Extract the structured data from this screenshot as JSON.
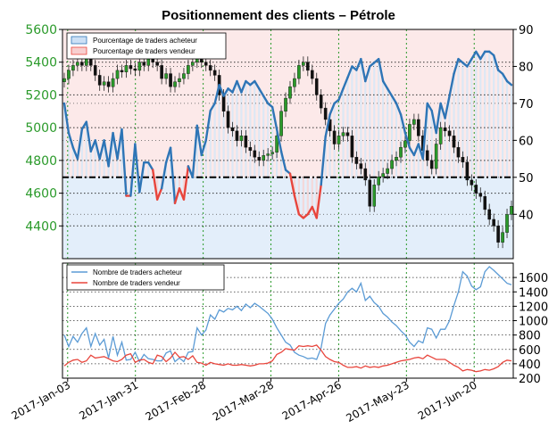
{
  "chart_data": [
    {
      "type": "line",
      "title": "Positionnement des clients – Pétrole",
      "left_axis": {
        "ylim": [
          4200,
          5600
        ],
        "ticks": [
          4400,
          4600,
          4800,
          5000,
          5200,
          5400,
          5600
        ],
        "tick_labels": [
          "4400",
          "4600",
          "4800",
          "5000",
          "5200",
          "5400",
          "5600"
        ],
        "tick_color": "#2a9a2a"
      },
      "right_axis": {
        "ylim": [
          28,
          90
        ],
        "ticks": [
          40,
          50,
          60,
          70,
          80,
          90
        ],
        "tick_labels": [
          "40",
          "50",
          "60",
          "70",
          "80",
          "90"
        ]
      },
      "x_ticks": [
        "2017-Jan-03",
        "2017-Jan-31",
        "2017-Feb-28",
        "2017-Mar-28",
        "2017-Apr-26",
        "2017-May-23",
        "2017-Jun-20"
      ],
      "threshold": 50,
      "legend": {
        "placement": "top-left",
        "entries": [
          {
            "label": "Pourcentage de traders acheteur",
            "color": "#2e75b6",
            "fill": "#cce0f5"
          },
          {
            "label": "Pourcentage de traders vendeur",
            "color": "#e8453c",
            "fill": "#f8cfcf"
          }
        ]
      },
      "series": [
        {
          "name": "Pourcentage de traders acheteur",
          "color": "#2e75b6",
          "values": [
            70,
            62,
            58,
            55,
            63,
            65,
            57,
            60,
            55,
            60,
            53,
            62,
            55,
            63,
            45,
            45,
            59,
            46,
            54,
            54,
            52,
            44,
            47,
            54,
            58,
            43,
            47,
            44,
            53,
            50,
            64,
            56,
            60,
            68,
            70,
            75,
            72,
            74,
            73,
            76,
            73,
            76,
            75,
            76,
            74,
            72,
            70,
            69,
            63,
            57,
            52,
            51,
            45,
            40,
            39,
            40,
            42,
            39,
            48,
            61,
            67,
            70,
            71,
            74,
            77,
            80,
            79,
            82,
            76,
            80,
            81,
            82,
            76,
            74,
            72,
            70,
            67,
            62,
            58,
            56,
            59,
            55,
            70,
            68,
            62,
            70,
            66,
            72,
            78,
            82,
            81,
            80,
            82,
            84,
            82,
            84,
            84,
            83,
            79,
            78,
            76,
            75
          ]
        },
        {
          "name": "Candlesticks (Pétrole)",
          "color": "#1a1a1a",
          "values": [
            5300,
            5350,
            5380,
            5400,
            5380,
            5420,
            5380,
            5320,
            5260,
            5280,
            5250,
            5300,
            5350,
            5340,
            5380,
            5360,
            5350,
            5400,
            5380,
            5420,
            5400,
            5380,
            5300,
            5330,
            5250,
            5280,
            5300,
            5330,
            5380,
            5400,
            5420,
            5400,
            5380,
            5350,
            5320,
            5200,
            5100,
            5000,
            4980,
            4920,
            4950,
            4880,
            4860,
            4820,
            4800,
            4830,
            4840,
            4850,
            4950,
            5100,
            5180,
            5250,
            5300,
            5380,
            5400,
            5350,
            5300,
            5200,
            5120,
            5050,
            4980,
            4900,
            4950,
            4970,
            4950,
            4820,
            4780,
            4750,
            4680,
            4520,
            4650,
            4700,
            4720,
            4750,
            4800,
            4820,
            4880,
            4920,
            5020,
            5050,
            4950,
            4860,
            4800,
            4750,
            4900,
            5000,
            4980,
            4950,
            4880,
            4820,
            4790,
            4680,
            4650,
            4600,
            4580,
            4500,
            4440,
            4400,
            4300,
            4360,
            4470,
            4520
          ]
        }
      ]
    },
    {
      "type": "line",
      "ylim": [
        200,
        1800
      ],
      "ticks": [
        200,
        400,
        600,
        800,
        1000,
        1200,
        1400,
        1600
      ],
      "tick_labels": [
        "200",
        "400",
        "600",
        "800",
        "1000",
        "1200",
        "1400",
        "1600"
      ],
      "legend": {
        "placement": "top-left",
        "entries": [
          {
            "label": "Nombre de traders acheteur",
            "color": "#5b9bd5"
          },
          {
            "label": "Nombre de traders vendeur",
            "color": "#e8453c"
          }
        ]
      },
      "series": [
        {
          "name": "Nombre de traders acheteur",
          "color": "#5b9bd5",
          "values": [
            800,
            640,
            780,
            700,
            820,
            900,
            640,
            820,
            660,
            740,
            480,
            780,
            520,
            700,
            450,
            460,
            560,
            430,
            530,
            470,
            460,
            440,
            440,
            550,
            580,
            430,
            480,
            430,
            560,
            570,
            900,
            800,
            870,
            1080,
            1020,
            1150,
            1120,
            1170,
            1150,
            1200,
            1140,
            1230,
            1180,
            1240,
            1200,
            1150,
            1100,
            1020,
            900,
            800,
            700,
            660,
            560,
            520,
            500,
            470,
            480,
            460,
            620,
            960,
            1080,
            1160,
            1240,
            1300,
            1400,
            1450,
            1400,
            1520,
            1280,
            1340,
            1250,
            1200,
            1100,
            1050,
            980,
            930,
            860,
            800,
            700,
            640,
            720,
            690,
            900,
            880,
            760,
            880,
            880,
            1000,
            1210,
            1400,
            1680,
            1620,
            1480,
            1430,
            1470,
            1680,
            1750,
            1700,
            1640,
            1580,
            1520,
            1500
          ]
        },
        {
          "name": "Nombre de traders vendeur",
          "color": "#e8453c",
          "values": [
            370,
            420,
            450,
            460,
            420,
            440,
            520,
            480,
            490,
            500,
            470,
            440,
            430,
            460,
            520,
            540,
            420,
            450,
            460,
            420,
            400,
            520,
            500,
            430,
            480,
            560,
            490,
            500,
            460,
            510,
            420,
            410,
            380,
            420,
            400,
            390,
            380,
            400,
            380,
            380,
            390,
            380,
            370,
            380,
            400,
            400,
            410,
            440,
            530,
            560,
            610,
            600,
            590,
            650,
            640,
            650,
            640,
            660,
            590,
            500,
            460,
            430,
            420,
            380,
            350,
            350,
            360,
            340,
            370,
            350,
            360,
            350,
            370,
            380,
            400,
            420,
            440,
            450,
            460,
            480,
            490,
            470,
            520,
            490,
            460,
            460,
            460,
            420,
            380,
            350,
            300,
            320,
            310,
            290,
            300,
            320,
            310,
            330,
            360,
            420,
            450,
            440
          ]
        }
      ]
    }
  ]
}
